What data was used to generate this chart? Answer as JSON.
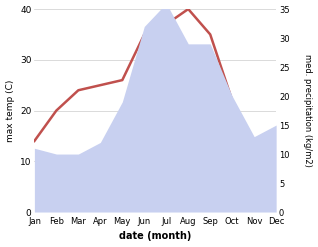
{
  "months": [
    "Jan",
    "Feb",
    "Mar",
    "Apr",
    "May",
    "Jun",
    "Jul",
    "Aug",
    "Sep",
    "Oct",
    "Nov",
    "Dec"
  ],
  "temperature": [
    14,
    20,
    24,
    25,
    26,
    35,
    37,
    40,
    35,
    22,
    14,
    16
  ],
  "precipitation": [
    11,
    10,
    10,
    12,
    19,
    32,
    36,
    29,
    29,
    20,
    13,
    15
  ],
  "temp_color": "#c0504d",
  "precip_fill_color": "#c8d0f0",
  "temp_ylim": [
    0,
    40
  ],
  "precip_ylim": [
    0,
    35
  ],
  "temp_yticks": [
    0,
    10,
    20,
    30,
    40
  ],
  "precip_yticks": [
    0,
    5,
    10,
    15,
    20,
    25,
    30,
    35
  ],
  "xlabel": "date (month)",
  "ylabel_left": "max temp (C)",
  "ylabel_right": "med. precipitation (kg/m2)",
  "bg_color": "#ffffff",
  "grid_color": "#cccccc"
}
